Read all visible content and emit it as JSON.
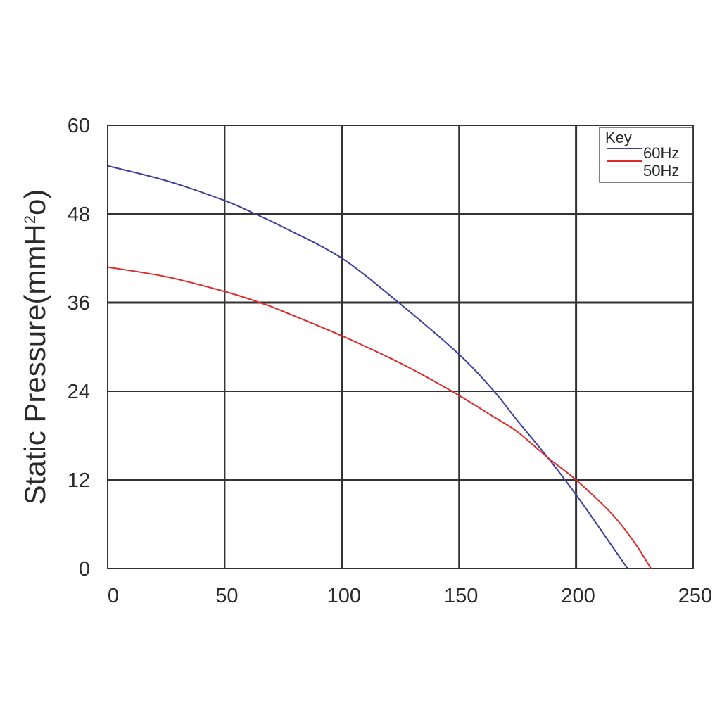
{
  "chart_data": {
    "type": "line",
    "ylabel_main": "Static Pressure(mmH",
    "ylabel_sup": "2",
    "ylabel_end": "o)",
    "xlim": [
      0,
      250
    ],
    "ylim": [
      0,
      60
    ],
    "x_ticks": [
      0,
      50,
      100,
      150,
      200,
      250
    ],
    "y_ticks": [
      0,
      12,
      24,
      36,
      48,
      60
    ],
    "grid": true,
    "legend": {
      "title": "Key",
      "position": "top-right"
    },
    "series": [
      {
        "name": "60Hz",
        "color": "#3b3f9a",
        "x": [
          0,
          25,
          50,
          63,
          75,
          100,
          125,
          150,
          165,
          175,
          188,
          200,
          210,
          222
        ],
        "y": [
          54.5,
          52.5,
          49.8,
          48,
          46.2,
          42,
          35.8,
          29,
          24,
          20,
          15,
          10,
          5.5,
          0
        ]
      },
      {
        "name": "50Hz",
        "color": "#dd2a2a",
        "x": [
          0,
          25,
          50,
          65,
          75,
          100,
          125,
          147,
          165,
          175,
          188,
          200,
          215,
          225,
          232
        ],
        "y": [
          40.8,
          39.5,
          37.5,
          36,
          34.8,
          31.5,
          27.8,
          24,
          20.5,
          18.5,
          15,
          12,
          7.5,
          3.5,
          0
        ]
      }
    ]
  }
}
